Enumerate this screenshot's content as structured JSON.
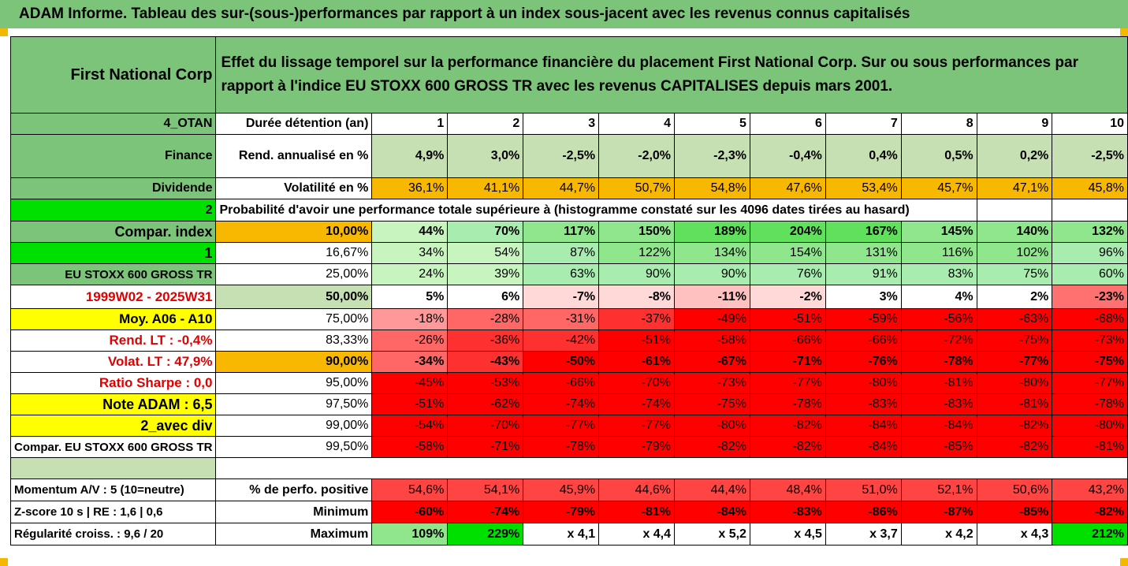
{
  "report_title": "ADAM Informe. Tableau des sur-(sous-)performances par rapport à un index sous-jacent avec les revenus connus capitalisés",
  "header": {
    "company": "First National Corp",
    "description": "Effet du lissage temporel sur la performance financière du placement First National Corp. Sur ou sous performances par rapport à l'indice EU STOXX 600 GROSS TR avec les revenus CAPITALISES depuis mars 2001."
  },
  "rows": {
    "duration": {
      "side": "4_OTAN",
      "label": "Durée détention (an)",
      "values": [
        "1",
        "2",
        "3",
        "4",
        "5",
        "6",
        "7",
        "8",
        "9",
        "10"
      ]
    },
    "rend": {
      "side": "Finance",
      "label": "Rend. annualisé en %",
      "values": [
        "4,9%",
        "3,0%",
        "-2,5%",
        "-2,0%",
        "-2,3%",
        "-0,4%",
        "0,4%",
        "0,5%",
        "0,2%",
        "-2,5%"
      ]
    },
    "vol": {
      "side": "Dividende",
      "label": "Volatilité en %",
      "values": [
        "36,1%",
        "41,1%",
        "44,7%",
        "50,7%",
        "54,8%",
        "47,6%",
        "53,4%",
        "45,7%",
        "47,1%",
        "45,8%"
      ]
    },
    "proba": {
      "side": "2",
      "text": "Probabilité d'avoir une performance totale supérieure à (histogramme constaté sur les 4096 dates tirées au hasard)"
    }
  },
  "quantiles": [
    {
      "side": "Compar. index",
      "pct": "10,00%",
      "values": [
        "44%",
        "70%",
        "117%",
        "150%",
        "189%",
        "204%",
        "167%",
        "145%",
        "140%",
        "132%"
      ]
    },
    {
      "side": "1",
      "pct": "16,67%",
      "values": [
        "34%",
        "54%",
        "87%",
        "122%",
        "134%",
        "154%",
        "131%",
        "116%",
        "102%",
        "96%"
      ]
    },
    {
      "side": "EU STOXX 600 GROSS TR",
      "pct": "25,00%",
      "values": [
        "24%",
        "39%",
        "63%",
        "90%",
        "90%",
        "76%",
        "91%",
        "83%",
        "75%",
        "60%"
      ]
    },
    {
      "side": "1999W02 - 2025W31",
      "pct": "50,00%",
      "values": [
        "5%",
        "6%",
        "-7%",
        "-8%",
        "-11%",
        "-2%",
        "3%",
        "4%",
        "2%",
        "-23%"
      ]
    },
    {
      "side": "Moy. A06 - A10",
      "pct": "75,00%",
      "values": [
        "-18%",
        "-28%",
        "-31%",
        "-37%",
        "-49%",
        "-51%",
        "-59%",
        "-56%",
        "-63%",
        "-68%"
      ]
    },
    {
      "side": "Rend. LT :   -0,4%",
      "pct": "83,33%",
      "values": [
        "-26%",
        "-36%",
        "-42%",
        "-51%",
        "-58%",
        "-66%",
        "-66%",
        "-72%",
        "-75%",
        "-73%"
      ]
    },
    {
      "side": "Volat. LT :   47,9%",
      "pct": "90,00%",
      "values": [
        "-34%",
        "-43%",
        "-50%",
        "-61%",
        "-67%",
        "-71%",
        "-76%",
        "-78%",
        "-77%",
        "-75%"
      ]
    },
    {
      "side": "Ratio Sharpe :    0,0",
      "pct": "95,00%",
      "values": [
        "-45%",
        "-53%",
        "-66%",
        "-70%",
        "-73%",
        "-77%",
        "-80%",
        "-81%",
        "-80%",
        "-77%"
      ]
    },
    {
      "side": "Note ADAM : 6,5",
      "pct": "97,50%",
      "values": [
        "-51%",
        "-62%",
        "-74%",
        "-74%",
        "-75%",
        "-78%",
        "-83%",
        "-83%",
        "-81%",
        "-78%"
      ]
    },
    {
      "side": "2_avec div",
      "pct": "99,00%",
      "values": [
        "-54%",
        "-70%",
        "-77%",
        "-77%",
        "-80%",
        "-82%",
        "-84%",
        "-84%",
        "-82%",
        "-80%"
      ]
    },
    {
      "side": "Compar. EU STOXX 600 GROSS TR",
      "pct": "99,50%",
      "values": [
        "-58%",
        "-71%",
        "-78%",
        "-79%",
        "-82%",
        "-82%",
        "-84%",
        "-85%",
        "-82%",
        "-81%"
      ]
    }
  ],
  "stats": [
    {
      "side": "Momentum A/V : 5 (10=neutre)",
      "label": "% de perfo. positive",
      "values": [
        "54,6%",
        "54,1%",
        "45,9%",
        "44,6%",
        "44,4%",
        "48,4%",
        "51,0%",
        "52,1%",
        "50,6%",
        "43,2%"
      ]
    },
    {
      "side": "Z-score 10 s  |  RE : 1,6  |  0,6",
      "label": "Minimum",
      "values": [
        "-60%",
        "-74%",
        "-79%",
        "-81%",
        "-84%",
        "-83%",
        "-86%",
        "-87%",
        "-85%",
        "-82%"
      ]
    },
    {
      "side": "Régularité croiss. : 9,6 / 20",
      "label": "Maximum",
      "values": [
        "109%",
        "229%",
        "x 4,1",
        "x 4,4",
        "x 5,2",
        "x 4,5",
        "x 3,7",
        "x 4,2",
        "x 4,3",
        "212%"
      ]
    }
  ],
  "colors": {
    "header_green": "#7cc47a",
    "light_green": "#c6e0b4",
    "orange": "#f8b700",
    "yellow": "#ffff00",
    "bright_green": "#00e000",
    "red": "#ff0000",
    "dark_red_text": "#e00000"
  }
}
